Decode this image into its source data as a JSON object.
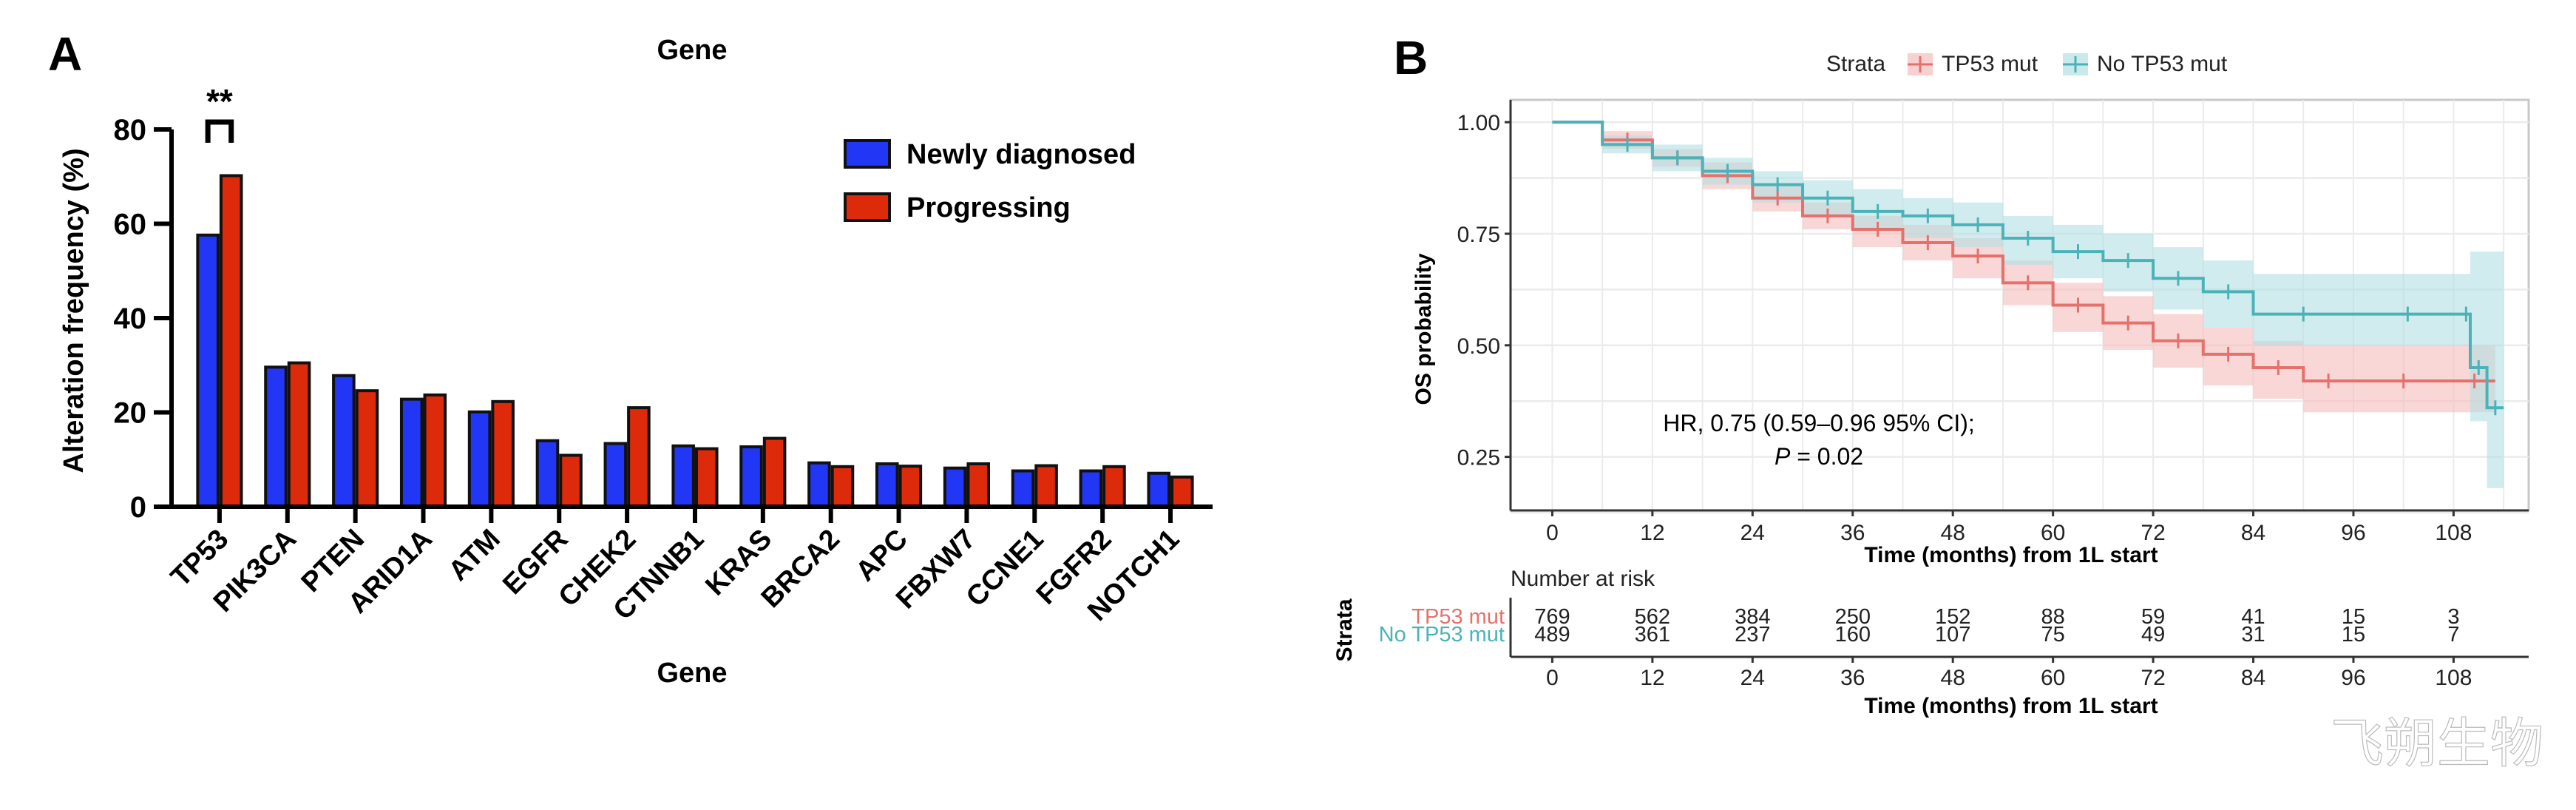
{
  "clipped_header_text": "",
  "watermark": "飞朔生物",
  "chart_data": [
    {
      "panel": "A",
      "type": "bar",
      "title": "Gene",
      "xlabel": "Gene",
      "ylabel": "Alteration frequency (%)",
      "ylim": [
        0,
        80
      ],
      "yticks": [
        0,
        20,
        40,
        60,
        80
      ],
      "categories": [
        "TP53",
        "PIK3CA",
        "PTEN",
        "ARID1A",
        "ATM",
        "EGFR",
        "CHEK2",
        "CTNNB1",
        "KRAS",
        "BRCA2",
        "APC",
        "FBXW7",
        "CCNE1",
        "FGFR2",
        "NOTCH1"
      ],
      "series": [
        {
          "name": "Newly diagnosed",
          "color": "#2236f5",
          "values": [
            57.6,
            29.6,
            27.8,
            22.8,
            20.1,
            14.0,
            13.4,
            12.9,
            12.7,
            9.3,
            9.1,
            8.2,
            7.6,
            7.6,
            7.1
          ]
        },
        {
          "name": "Progressing",
          "color": "#dc2a0a",
          "values": [
            70.2,
            30.5,
            24.6,
            23.7,
            22.3,
            10.9,
            21.0,
            12.3,
            14.5,
            8.5,
            8.6,
            9.1,
            8.7,
            8.5,
            6.3
          ]
        }
      ],
      "legend_position": "top-right",
      "annotations": [
        {
          "category": "TP53",
          "text": "**",
          "type": "significance-bracket"
        }
      ],
      "grid": false
    },
    {
      "panel": "B",
      "type": "line",
      "subtype": "kaplan-meier",
      "legend_title": "Strata",
      "legend_position": "top",
      "xlabel": "Time (months) from 1L start",
      "ylabel": "OS probability",
      "xlim": [
        -5,
        117
      ],
      "ylim": [
        0.13,
        1.05
      ],
      "xticks": [
        0,
        12,
        24,
        36,
        48,
        60,
        72,
        84,
        96,
        108
      ],
      "yticks": [
        0.25,
        0.5,
        0.75,
        1.0
      ],
      "ytick_labels": [
        "0.25",
        "0.50",
        "0.75",
        "1.00"
      ],
      "grid": true,
      "annotation_line1": "HR, 0.75 (0.59–0.96 95% CI);",
      "annotation_p_label": "P",
      "annotation_p_value": " = 0.02",
      "series": [
        {
          "name": "TP53 mut",
          "color": "#e4716b",
          "band_color": "#f3bcbb",
          "x": [
            0,
            6,
            12,
            18,
            24,
            30,
            36,
            42,
            48,
            54,
            60,
            66,
            72,
            78,
            84,
            90,
            96,
            108,
            113
          ],
          "y": [
            1.0,
            0.96,
            0.92,
            0.88,
            0.83,
            0.79,
            0.76,
            0.73,
            0.7,
            0.64,
            0.59,
            0.55,
            0.51,
            0.48,
            0.45,
            0.42,
            0.42,
            0.42,
            0.42
          ],
          "lower": [
            1.0,
            0.94,
            0.9,
            0.85,
            0.8,
            0.76,
            0.72,
            0.69,
            0.65,
            0.59,
            0.53,
            0.49,
            0.45,
            0.41,
            0.38,
            0.35,
            0.35,
            0.35,
            0.35
          ],
          "upper": [
            1.0,
            0.98,
            0.94,
            0.91,
            0.86,
            0.82,
            0.79,
            0.77,
            0.74,
            0.69,
            0.64,
            0.61,
            0.57,
            0.54,
            0.51,
            0.5,
            0.5,
            0.5,
            0.5
          ]
        },
        {
          "name": "No TP53 mut",
          "color": "#4bb3b8",
          "band_color": "#b3e0e3",
          "x": [
            0,
            6,
            12,
            18,
            24,
            30,
            36,
            42,
            48,
            54,
            60,
            66,
            72,
            78,
            84,
            96,
            109,
            110,
            112,
            114
          ],
          "y": [
            1.0,
            0.95,
            0.92,
            0.89,
            0.86,
            0.83,
            0.8,
            0.79,
            0.77,
            0.74,
            0.71,
            0.69,
            0.65,
            0.62,
            0.57,
            0.57,
            0.57,
            0.45,
            0.36,
            0.36
          ],
          "lower": [
            1.0,
            0.93,
            0.89,
            0.86,
            0.82,
            0.79,
            0.76,
            0.74,
            0.72,
            0.68,
            0.65,
            0.62,
            0.58,
            0.54,
            0.5,
            0.5,
            0.5,
            0.33,
            0.18,
            0.18
          ],
          "upper": [
            1.0,
            0.97,
            0.95,
            0.92,
            0.89,
            0.87,
            0.85,
            0.83,
            0.82,
            0.79,
            0.77,
            0.75,
            0.72,
            0.69,
            0.66,
            0.66,
            0.66,
            0.71,
            0.71,
            0.71
          ]
        }
      ],
      "risk_table": {
        "title": "Number at risk",
        "ylabel": "Strata",
        "xlabel": "Time (months) from 1L start",
        "times": [
          0,
          12,
          24,
          36,
          48,
          60,
          72,
          84,
          96,
          108
        ],
        "rows": [
          {
            "label": "TP53 mut",
            "color": "#e4716b",
            "counts": [
              769,
              562,
              384,
              250,
              152,
              88,
              59,
              41,
              15,
              3
            ]
          },
          {
            "label": "No TP53 mut",
            "color": "#4bb3b8",
            "counts": [
              489,
              361,
              237,
              160,
              107,
              75,
              49,
              31,
              15,
              7
            ]
          }
        ]
      }
    }
  ]
}
